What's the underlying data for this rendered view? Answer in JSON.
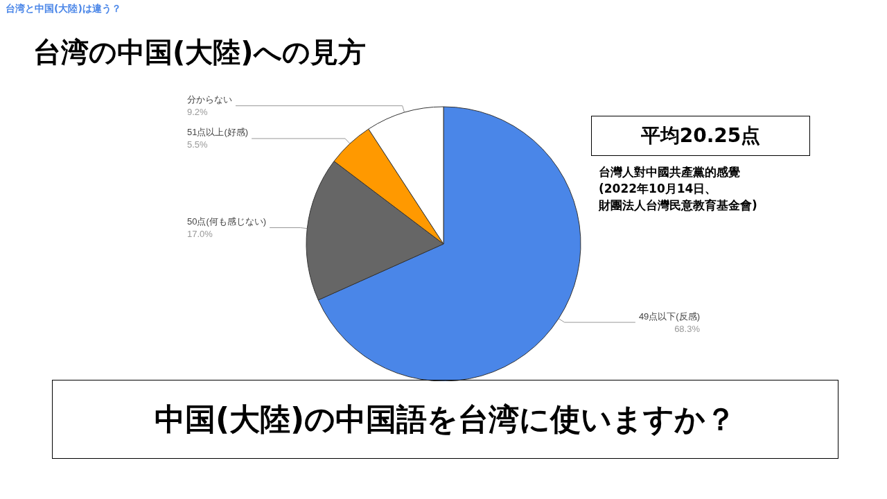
{
  "chart_data": {
    "type": "pie",
    "title": "台湾の中国(大陸)への見方",
    "categories": [
      "49点以下(反感)",
      "50点(何も感じない)",
      "51点以上(好感)",
      "分からない"
    ],
    "values": [
      68.3,
      17.0,
      5.5,
      9.2
    ],
    "value_labels": [
      "68.3%",
      "17.0%",
      "5.5%",
      "9.2%"
    ],
    "colors": [
      "#4a86e8",
      "#666666",
      "#ff9900",
      "#ffffff"
    ],
    "legend": false,
    "annotations": [
      "台湾と中国(大陸)は違う？",
      "平均20.25点",
      "台灣人對中國共產黨的感覺",
      "(2022年10月14日、",
      "財團法人台灣民意教育基金會)",
      "中国(大陸)の中国語を台湾に使いますか？"
    ]
  }
}
